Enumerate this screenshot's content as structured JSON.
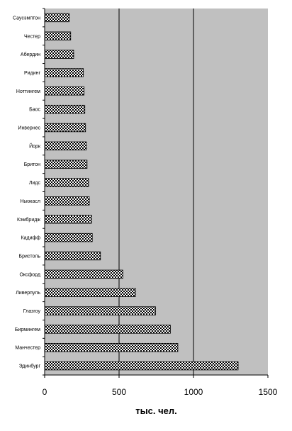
{
  "chart_data": {
    "type": "bar",
    "orientation": "horizontal",
    "categories": [
      "Эдинбург",
      "Манчестер",
      "Бирмингем",
      "Глазгоу",
      "Ливерпуль",
      "Оксфорд",
      "Бристоль",
      "Кадифф",
      "Кэмбридж",
      "Ньюкасл",
      "Лидс",
      "Бритон",
      "Йорк",
      "Инвернес",
      "Бaос",
      "Ноттингем",
      "Ридинг",
      "Абердин",
      "Честер",
      "Саусэмптон"
    ],
    "values": [
      1300,
      895,
      845,
      745,
      610,
      525,
      375,
      320,
      315,
      300,
      295,
      285,
      280,
      275,
      270,
      265,
      260,
      195,
      175,
      165
    ],
    "xlabel": "тыс. чел.",
    "xlim": [
      0,
      1500
    ],
    "xticks": [
      0,
      500,
      1000,
      1500
    ],
    "grid": "vertical major gridlines",
    "legend": "none",
    "colors": {
      "plot_background": "#c0c0c0",
      "bar_fill": "checkered black and white",
      "gridline": "#000000"
    }
  }
}
